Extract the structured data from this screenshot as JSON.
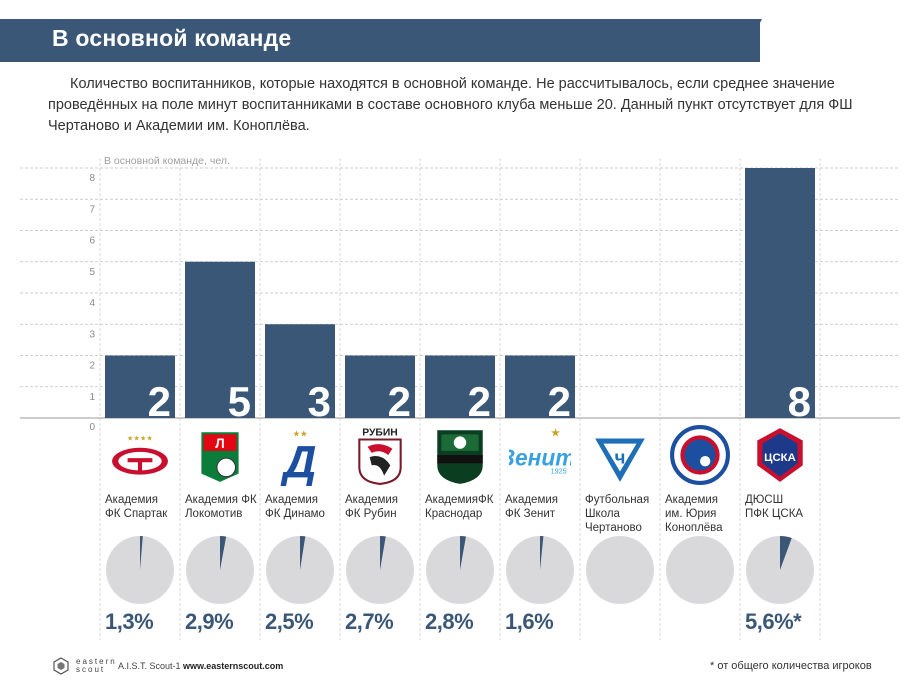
{
  "header": {
    "title": "В основной команде"
  },
  "intro": "Количество воспитанников, которые находятся в основной команде. Не рассчитывалось, если среднее значение проведённых на поле минут воспитанниками в составе основного клуба меньше 20. Данный пункт отсутствует для ФШ Чертаново и Академии им. Коноплёва.",
  "chart_data": {
    "type": "bar",
    "ylabel": "В основной команде, чел.",
    "ylim": [
      0,
      8
    ],
    "yticks": [
      "0",
      "1",
      "2",
      "3",
      "4",
      "5",
      "6",
      "7",
      "8"
    ],
    "grid": true,
    "categories": [
      "Академия ФК Спартак",
      "Академия ФК Локомотив",
      "Академия ФК Динамо",
      "Академия ФК Рубин",
      "Академия ФК Краснодар",
      "Академия ФК Зенит",
      "Футбольная Школа Чертаново",
      "Академия им. Юрия Коноплёва",
      "ДЮСШ ПФК ЦСКА"
    ],
    "values": [
      2,
      5,
      3,
      2,
      2,
      2,
      null,
      null,
      8
    ],
    "value_labels": [
      "2",
      "5",
      "3",
      "2",
      "2",
      "2",
      "",
      "",
      "8"
    ],
    "share_values": [
      1.3,
      2.9,
      2.5,
      2.7,
      2.8,
      1.6,
      null,
      null,
      5.6
    ],
    "share_labels": [
      "1,3%",
      "2,9%",
      "2,5%",
      "2,7%",
      "2,8%",
      "1,6%",
      "",
      "",
      "5,6%*"
    ],
    "colors": {
      "bar": "#3b5777",
      "pie_bg": "#d9d9dc",
      "pie_slice": "#3b5777",
      "grid": "#bfbfbf"
    }
  },
  "teams": [
    {
      "lines": [
        "Академия",
        "ФК Спартак"
      ],
      "logo": "spartak-logo"
    },
    {
      "lines": [
        "Академия ФК",
        "Локомотив"
      ],
      "logo": "lokomotiv-logo"
    },
    {
      "lines": [
        "Академия",
        "ФК Динамо"
      ],
      "logo": "dynamo-logo"
    },
    {
      "lines": [
        "Академия",
        "ФК Рубин"
      ],
      "logo": "rubin-logo",
      "logo_text": "РУБИН"
    },
    {
      "lines": [
        "АкадемияФК",
        "Краснодар"
      ],
      "logo": "krasnodar-logo"
    },
    {
      "lines": [
        "Академия",
        "ФК Зенит"
      ],
      "logo": "zenit-logo",
      "logo_text": "Зенит"
    },
    {
      "lines": [
        "Футбольная",
        "Школа",
        "Чертаново"
      ],
      "logo": "chertanovo-logo"
    },
    {
      "lines": [
        "Академия",
        "им. Юрия",
        "Коноплёва"
      ],
      "logo": "konoplev-logo"
    },
    {
      "lines": [
        "ДЮСШ",
        "ПФК ЦСКА"
      ],
      "logo": "cska-logo",
      "logo_text": "ЦСКА"
    }
  ],
  "footer": {
    "brand_line1": "eastern",
    "brand_line2": "scout",
    "product": "A.I.S.T. Scout-1",
    "url": "www.easternscout.com",
    "note": "* от общего количества игроков"
  }
}
